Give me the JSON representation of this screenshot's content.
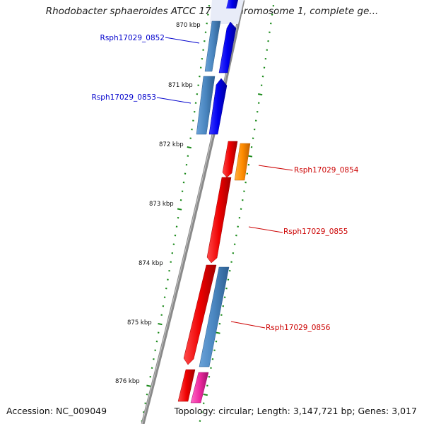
{
  "title": "Rhodobacter sphaeroides ATCC 17029 chromosome 1, complete ge...",
  "accession": "Accession: NC_009049",
  "summary": "Topology: circular; Length: 3,147,721 bp; Genes: 3,017",
  "kbp_labels": [
    "870 kbp",
    "871 kbp",
    "872 kbp",
    "873 kbp",
    "874 kbp",
    "875 kbp",
    "876 kbp"
  ],
  "gene_labels": [
    {
      "text": "Rsph17029_0852",
      "color": "#0000cc"
    },
    {
      "text": "Rsph17029_0853",
      "color": "#0000cc"
    },
    {
      "text": "Rsph17029_0854",
      "color": "#cc0000"
    },
    {
      "text": "Rsph17029_0855",
      "color": "#cc0000"
    },
    {
      "text": "Rsph17029_0856",
      "color": "#cc0000"
    }
  ],
  "colors": {
    "forward_cds": "#0000ee",
    "forward_gene": "#4a86c0",
    "reverse_cds": "#ee0000",
    "orange_feature": "#ff8c00",
    "pink_feature": "#ee2aa0",
    "tick": "#1a8a1a",
    "backbone": "#888888"
  }
}
